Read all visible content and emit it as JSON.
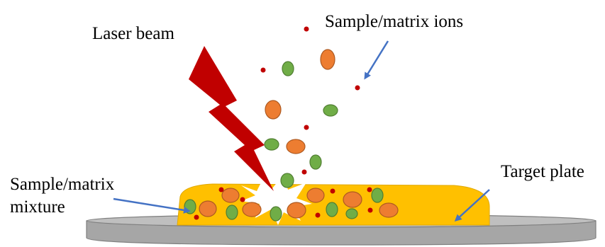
{
  "labels": {
    "laser": "Laser beam",
    "ions": "Sample/matrix ions",
    "plate": "Target plate",
    "mixture": [
      "Sample/matrix",
      "mixture"
    ]
  }
}
